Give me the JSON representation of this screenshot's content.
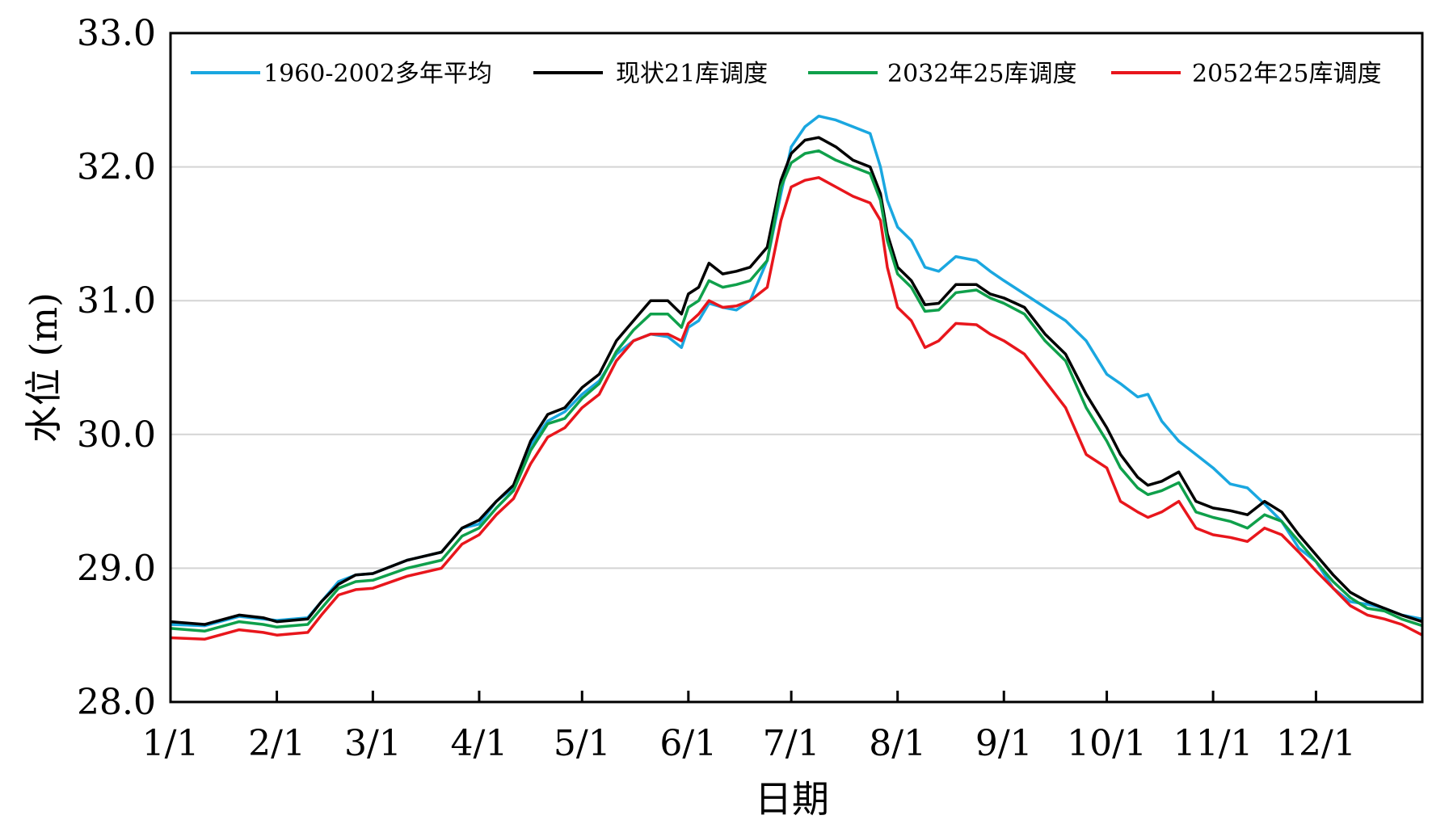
{
  "chart_data": {
    "type": "line",
    "xlabel": "日期",
    "ylabel": "水位 (m)",
    "ylim": [
      28.0,
      33.0
    ],
    "yticks": [
      "33.0",
      "32.0",
      "31.0",
      "30.0",
      "29.0",
      "28.0"
    ],
    "xticks": [
      {
        "doy": 1,
        "label": "1/1"
      },
      {
        "doy": 32,
        "label": "2/1"
      },
      {
        "doy": 60,
        "label": "3/1"
      },
      {
        "doy": 91,
        "label": "4/1"
      },
      {
        "doy": 121,
        "label": "5/1"
      },
      {
        "doy": 152,
        "label": "6/1"
      },
      {
        "doy": 182,
        "label": "7/1"
      },
      {
        "doy": 213,
        "label": "8/1"
      },
      {
        "doy": 244,
        "label": "9/1"
      },
      {
        "doy": 274,
        "label": "10/1"
      },
      {
        "doy": 305,
        "label": "11/1"
      },
      {
        "doy": 335,
        "label": "12/1"
      }
    ],
    "xlim": [
      1,
      366
    ],
    "grid": true,
    "legend_position": "top",
    "x": [
      1,
      11,
      21,
      28,
      32,
      41,
      45,
      50,
      55,
      60,
      70,
      80,
      86,
      91,
      96,
      101,
      106,
      111,
      116,
      121,
      126,
      131,
      136,
      141,
      146,
      150,
      152,
      155,
      158,
      162,
      166,
      170,
      175,
      179,
      182,
      186,
      190,
      195,
      200,
      205,
      208,
      210,
      213,
      217,
      221,
      225,
      230,
      236,
      240,
      244,
      250,
      256,
      262,
      268,
      274,
      278,
      283,
      286,
      290,
      295,
      300,
      305,
      310,
      315,
      320,
      325,
      330,
      335,
      340,
      345,
      350,
      355,
      360,
      366
    ],
    "series": [
      {
        "name": "1960-2002多年平均",
        "color": "#1AA7E0",
        "values": [
          28.58,
          28.57,
          28.64,
          28.62,
          28.61,
          28.63,
          28.75,
          28.9,
          28.95,
          28.96,
          29.06,
          29.12,
          29.3,
          29.33,
          29.5,
          29.6,
          29.92,
          30.1,
          30.17,
          30.3,
          30.4,
          30.6,
          30.7,
          30.75,
          30.73,
          30.65,
          30.8,
          30.85,
          30.98,
          30.95,
          30.93,
          31.0,
          31.3,
          31.8,
          32.15,
          32.3,
          32.38,
          32.35,
          32.3,
          32.25,
          32.0,
          31.75,
          31.55,
          31.45,
          31.25,
          31.22,
          31.33,
          31.3,
          31.22,
          31.15,
          31.05,
          30.95,
          30.85,
          30.7,
          30.45,
          30.38,
          30.28,
          30.3,
          30.1,
          29.95,
          29.85,
          29.75,
          29.63,
          29.6,
          29.48,
          29.35,
          29.15,
          29.05,
          28.85,
          28.75,
          28.73,
          28.7,
          28.65,
          28.62
        ]
      },
      {
        "name": "现状21库调度",
        "color": "#000000",
        "values": [
          28.6,
          28.58,
          28.65,
          28.63,
          28.6,
          28.62,
          28.75,
          28.88,
          28.95,
          28.96,
          29.06,
          29.12,
          29.3,
          29.36,
          29.5,
          29.62,
          29.95,
          30.15,
          30.2,
          30.35,
          30.45,
          30.7,
          30.85,
          31.0,
          31.0,
          30.9,
          31.05,
          31.1,
          31.28,
          31.2,
          31.22,
          31.25,
          31.4,
          31.9,
          32.1,
          32.2,
          32.22,
          32.15,
          32.05,
          32.0,
          31.8,
          31.5,
          31.25,
          31.15,
          30.97,
          30.98,
          31.12,
          31.12,
          31.05,
          31.02,
          30.95,
          30.75,
          30.6,
          30.3,
          30.05,
          29.85,
          29.68,
          29.62,
          29.65,
          29.72,
          29.5,
          29.45,
          29.43,
          29.4,
          29.5,
          29.42,
          29.25,
          29.1,
          28.95,
          28.82,
          28.75,
          28.7,
          28.65,
          28.6
        ]
      },
      {
        "name": "2032年25库调度",
        "color": "#0FA04B",
        "values": [
          28.55,
          28.53,
          28.6,
          28.58,
          28.56,
          28.58,
          28.7,
          28.85,
          28.9,
          28.91,
          29.0,
          29.06,
          29.24,
          29.3,
          29.45,
          29.58,
          29.88,
          30.08,
          30.12,
          30.27,
          30.38,
          30.62,
          30.78,
          30.9,
          30.9,
          30.8,
          30.95,
          31.0,
          31.15,
          31.1,
          31.12,
          31.15,
          31.3,
          31.85,
          32.03,
          32.1,
          32.12,
          32.05,
          32.0,
          31.95,
          31.75,
          31.45,
          31.2,
          31.1,
          30.92,
          30.93,
          31.06,
          31.08,
          31.02,
          30.98,
          30.9,
          30.7,
          30.55,
          30.2,
          29.95,
          29.75,
          29.6,
          29.55,
          29.58,
          29.64,
          29.42,
          29.38,
          29.35,
          29.3,
          29.4,
          29.35,
          29.2,
          29.05,
          28.9,
          28.78,
          28.7,
          28.68,
          28.62,
          28.57
        ]
      },
      {
        "name": "2052年25库调度",
        "color": "#E8161C",
        "values": [
          28.48,
          28.47,
          28.54,
          28.52,
          28.5,
          28.52,
          28.65,
          28.8,
          28.84,
          28.85,
          28.94,
          29.0,
          29.18,
          29.25,
          29.4,
          29.52,
          29.78,
          29.98,
          30.05,
          30.2,
          30.3,
          30.55,
          30.7,
          30.75,
          30.75,
          30.7,
          30.83,
          30.9,
          31.0,
          30.95,
          30.96,
          31.0,
          31.1,
          31.6,
          31.85,
          31.9,
          31.92,
          31.85,
          31.78,
          31.73,
          31.6,
          31.25,
          30.95,
          30.85,
          30.65,
          30.7,
          30.83,
          30.82,
          30.75,
          30.7,
          30.6,
          30.4,
          30.2,
          29.85,
          29.75,
          29.5,
          29.42,
          29.38,
          29.42,
          29.5,
          29.3,
          29.25,
          29.23,
          29.2,
          29.3,
          29.25,
          29.12,
          28.98,
          28.85,
          28.72,
          28.65,
          28.62,
          28.58,
          28.5
        ]
      }
    ]
  }
}
